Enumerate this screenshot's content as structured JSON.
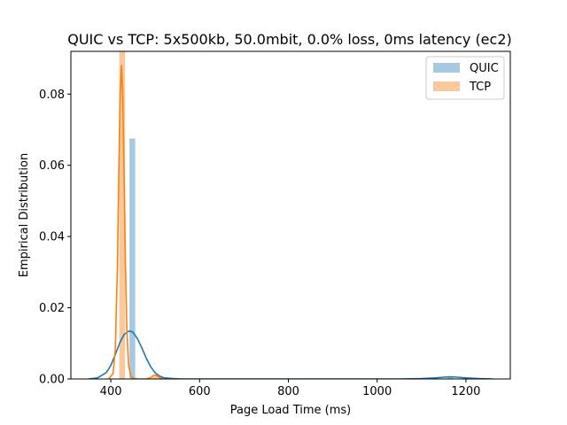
{
  "chart_data": {
    "type": "histogram+kde",
    "title": "QUIC vs TCP: 5x500kb, 50.0mbit, 0.0% loss, 0ms latency (ec2)",
    "xlabel": "Page Load Time (ms)",
    "ylabel": "Empirical Distribution",
    "xlim": [
      310,
      1300
    ],
    "ylim": [
      0,
      0.092
    ],
    "xticks": [
      400,
      600,
      800,
      1000,
      1200
    ],
    "yticks": [
      0.0,
      0.02,
      0.04,
      0.06,
      0.08
    ],
    "xtick_labels": [
      "400",
      "600",
      "800",
      "1000",
      "1200"
    ],
    "ytick_labels": [
      "0.00",
      "0.02",
      "0.04",
      "0.06",
      "0.08"
    ],
    "grid": false,
    "legend": {
      "position": "top-right",
      "entries": [
        "QUIC",
        "TCP"
      ]
    },
    "series": [
      {
        "name": "QUIC",
        "color": "#1f77b4",
        "hist_color": "#a6c8e0",
        "bins": [
          {
            "x0": 442,
            "x1": 455,
            "height": 0.0675
          },
          {
            "x0": 1158,
            "x1": 1171,
            "height": 0.0006
          }
        ],
        "kde": {
          "x": [
            350,
            370,
            390,
            400,
            410,
            420,
            430,
            440,
            445,
            450,
            460,
            470,
            480,
            490,
            500,
            510,
            520,
            540,
            560,
            600,
            700,
            800,
            900,
            1000,
            1050,
            1100,
            1130,
            1150,
            1165,
            1180,
            1200,
            1230,
            1260
          ],
          "y": [
            0.0,
            0.0003,
            0.0018,
            0.0038,
            0.0068,
            0.0101,
            0.0125,
            0.0134,
            0.0134,
            0.0131,
            0.0113,
            0.0087,
            0.0058,
            0.0034,
            0.0017,
            0.0008,
            0.0003,
            0.0001,
            0.0,
            0.0,
            0.0,
            0.0,
            0.0,
            0.0,
            0.0,
            0.0001,
            0.0003,
            0.0005,
            0.0006,
            0.0005,
            0.0003,
            0.0001,
            0.0
          ]
        }
      },
      {
        "name": "TCP",
        "color": "#ff7f0e",
        "hist_color": "#fbc89b",
        "bins": [
          {
            "x0": 419,
            "x1": 432,
            "height": 0.0925
          },
          {
            "x0": 493,
            "x1": 506,
            "height": 0.0007
          }
        ],
        "kde": {
          "x": [
            395,
            405,
            410,
            415,
            418,
            421,
            424,
            427,
            430,
            433,
            436,
            440,
            445,
            450,
            460,
            480,
            490,
            495,
            500,
            505,
            510,
            520
          ],
          "y": [
            0.0,
            0.0015,
            0.008,
            0.032,
            0.058,
            0.08,
            0.088,
            0.079,
            0.056,
            0.032,
            0.014,
            0.004,
            0.0008,
            0.0002,
            0.0,
            0.0,
            0.0004,
            0.0009,
            0.0011,
            0.0008,
            0.0003,
            0.0
          ]
        }
      }
    ]
  }
}
